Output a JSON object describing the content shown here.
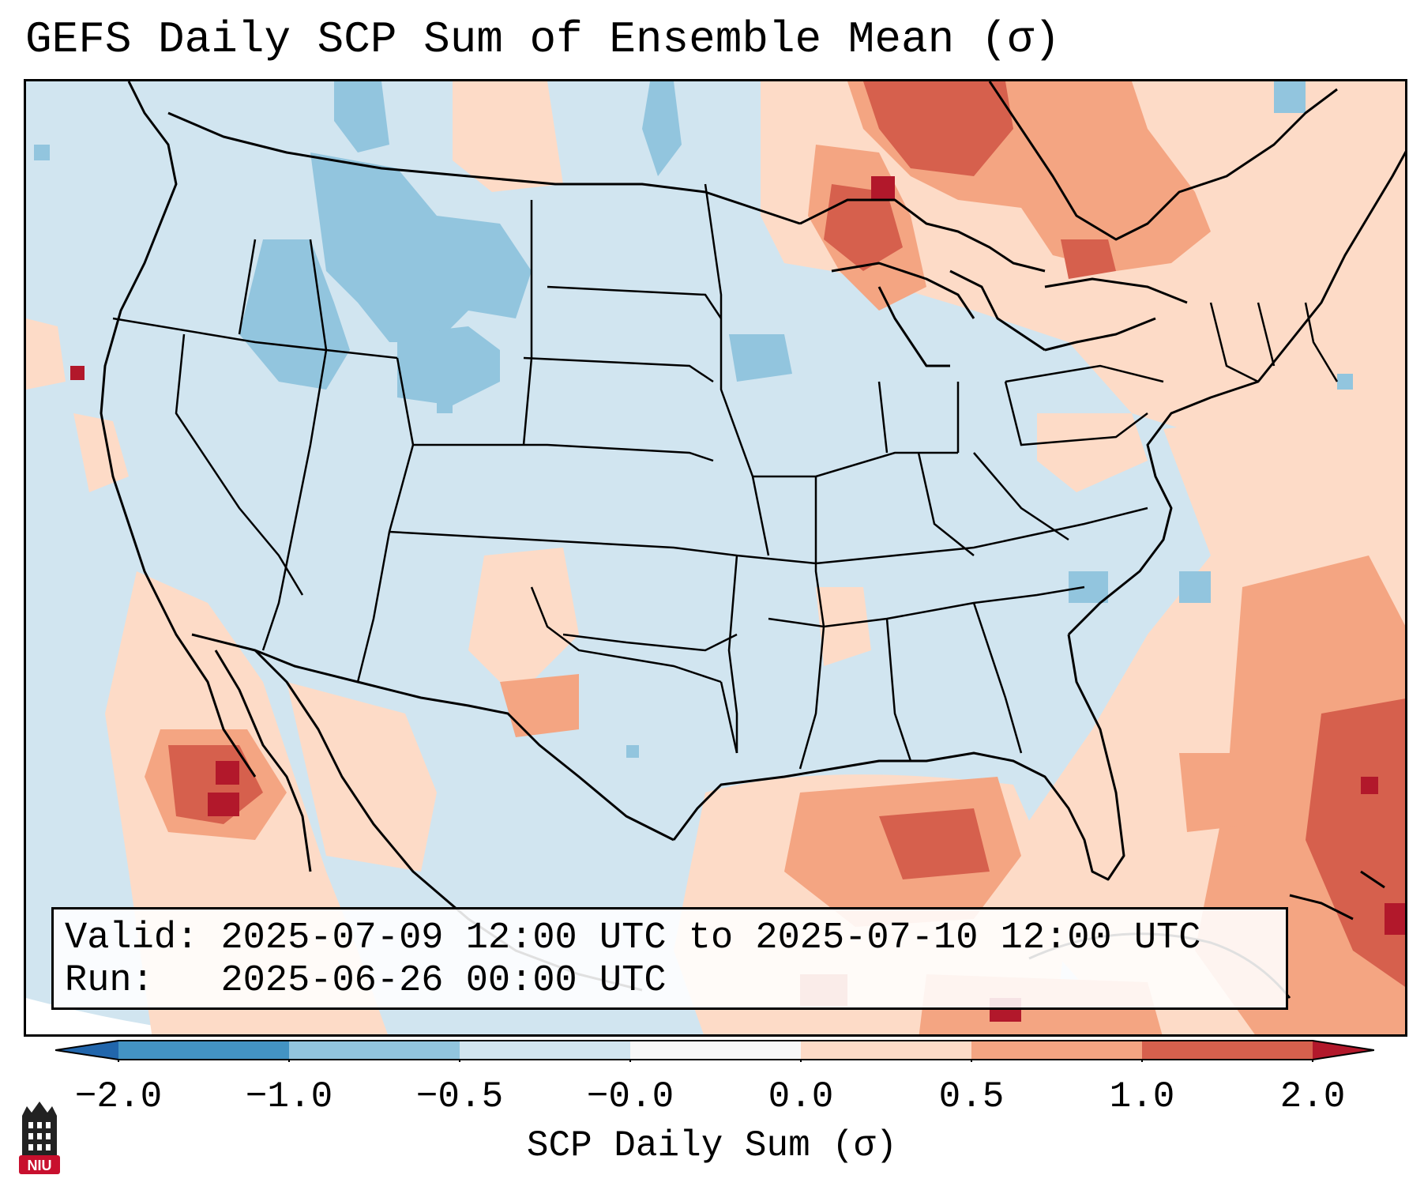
{
  "title": "GEFS Daily SCP Sum of Ensemble Mean (σ)",
  "info": {
    "valid_label": "Valid:",
    "valid_value": "2025-07-09 12:00 UTC to 2025-07-10 12:00 UTC",
    "run_label": "Run:",
    "run_value": "2025-06-26 00:00 UTC"
  },
  "colorbar": {
    "title": "SCP Daily Sum (σ)",
    "ticks": [
      "−2.0",
      "−1.0",
      "−0.5",
      "−0.0",
      "0.0",
      "0.5",
      "1.0",
      "2.0"
    ],
    "bins": [
      {
        "label": "< -2.0",
        "color": "#2166ac"
      },
      {
        "label": "-2.0 to -1.0",
        "color": "#4393c3"
      },
      {
        "label": "-1.0 to -0.5",
        "color": "#92c5de"
      },
      {
        "label": "-0.5 to -0.0",
        "color": "#d1e5f0"
      },
      {
        "label": "-0.0 to 0.0",
        "color": "#f7f7f7"
      },
      {
        "label": "0.0 to 0.5",
        "color": "#fddbc7"
      },
      {
        "label": "0.5 to 1.0",
        "color": "#f4a582"
      },
      {
        "label": "1.0 to 2.0",
        "color": "#d6604d"
      },
      {
        "label": "> 2.0",
        "color": "#b2182b"
      }
    ]
  },
  "logo": {
    "text": "NIU",
    "color": "#c8102e"
  }
}
